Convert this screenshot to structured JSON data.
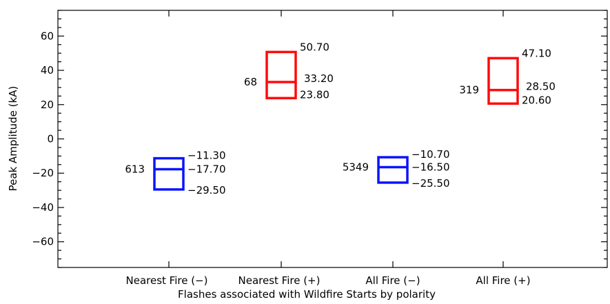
{
  "chart_data": {
    "type": "box",
    "title": "",
    "xlabel": "Flashes associated with Wildfire Starts by polarity",
    "ylabel": "Peak Amplitude (kA)",
    "ylim": [
      -75,
      75
    ],
    "y_ticks": [
      -60,
      -40,
      -20,
      0,
      20,
      40,
      60
    ],
    "y_tick_labels": [
      "−60",
      "−40",
      "−20",
      "0",
      "20",
      "40",
      "60"
    ],
    "y_minor_step": 5,
    "grid": false,
    "categories": [
      "Nearest Fire (−)",
      "Nearest Fire (+)",
      "All Fire (−)",
      "All Fire (+)"
    ],
    "boxes": [
      {
        "category": "Nearest Fire (−)",
        "count": 613,
        "count_label": "613",
        "q1": -29.5,
        "median": -17.7,
        "q3": -11.3,
        "q1_label": "−29.50",
        "median_label": "−17.70",
        "q3_label": "−11.30",
        "color": "#0a14ff"
      },
      {
        "category": "Nearest Fire (+)",
        "count": 68,
        "count_label": "68",
        "q1": 23.8,
        "median": 33.2,
        "q3": 50.7,
        "q1_label": "23.80",
        "median_label": "33.20",
        "q3_label": "50.70",
        "color": "#ff0a0a"
      },
      {
        "category": "All Fire (−)",
        "count": 5349,
        "count_label": "5349",
        "q1": -25.5,
        "median": -16.5,
        "q3": -10.7,
        "q1_label": "−25.50",
        "median_label": "−16.50",
        "q3_label": "−10.70",
        "color": "#0a14ff"
      },
      {
        "category": "All Fire (+)",
        "count": 319,
        "count_label": "319",
        "q1": 20.6,
        "median": 28.5,
        "q3": 47.1,
        "q1_label": "20.60",
        "median_label": "28.50",
        "q3_label": "47.10",
        "color": "#ff0a0a"
      }
    ]
  }
}
